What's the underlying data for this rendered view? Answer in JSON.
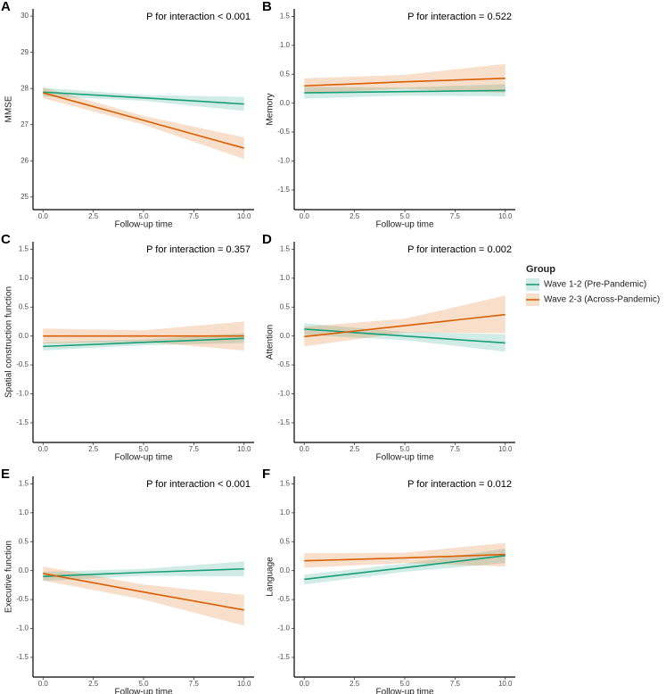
{
  "chart_data": [
    {
      "type": "line",
      "label": "A",
      "annotation": "P for interaction < 0.001",
      "x_label": "Follow-up time",
      "y_label": "MMSE",
      "legend_title": "Group",
      "x": [
        0,
        5,
        10
      ],
      "xlim": [
        -0.5,
        10.5
      ],
      "xticks": [
        {
          "value": 0,
          "label": "0.0"
        },
        2.5,
        {
          "value": 5,
          "label": "5.0"
        },
        7.5,
        {
          "value": 10,
          "label": "10.0"
        }
      ],
      "ylim": [
        24.65,
        30.2
      ],
      "yticks": [
        25,
        26,
        27,
        28,
        29,
        30
      ],
      "series": [
        {
          "name": "Wave 1-2 (Pre-Pandemic)",
          "color": "#1b9e77",
          "values": [
            27.9,
            27.74,
            27.57
          ],
          "lower": [
            27.78,
            27.66,
            27.38
          ],
          "upper": [
            28.02,
            27.82,
            27.77
          ]
        },
        {
          "name": "Wave 2-3 (Across-Pandemic)",
          "color": "#d95f02",
          "values": [
            27.88,
            27.12,
            26.35
          ],
          "lower": [
            27.73,
            27.0,
            26.05
          ],
          "upper": [
            28.03,
            27.24,
            26.65
          ]
        }
      ]
    },
    {
      "type": "line",
      "label": "B",
      "annotation": "P for interaction = 0.522",
      "x_label": "Follow-up time",
      "y_label": "Memory",
      "x": [
        0,
        5,
        10
      ],
      "xlim": [
        -0.5,
        10.5
      ],
      "xticks": [
        {
          "value": 0,
          "label": "0.0"
        },
        2.5,
        {
          "value": 5,
          "label": "5.0"
        },
        7.5,
        {
          "value": 10,
          "label": "10.0"
        }
      ],
      "ylim": [
        -1.84,
        1.63
      ],
      "yticks": [
        -1.5,
        {
          "value": -1,
          "label": "-1.0"
        },
        -0.5,
        {
          "value": 0,
          "label": "0.0"
        },
        0.5,
        {
          "value": 1,
          "label": "1.0"
        },
        1.5
      ],
      "series": [
        {
          "name": "Wave 1-2 (Pre-Pandemic)",
          "color": "#1b9e77",
          "values": [
            0.18,
            0.2,
            0.22
          ],
          "lower": [
            0.08,
            0.13,
            0.12
          ],
          "upper": [
            0.28,
            0.27,
            0.33
          ]
        },
        {
          "name": "Wave 2-3 (Across-Pandemic)",
          "color": "#d95f02",
          "values": [
            0.3,
            0.37,
            0.43
          ],
          "lower": [
            0.17,
            0.25,
            0.18
          ],
          "upper": [
            0.43,
            0.49,
            0.68
          ]
        }
      ]
    },
    {
      "type": "line",
      "label": "C",
      "annotation": "P for interaction = 0.357",
      "x_label": "Follow-up time",
      "y_label": "Spatial construction function",
      "x": [
        0,
        5,
        10
      ],
      "xlim": [
        -0.5,
        10.5
      ],
      "xticks": [
        {
          "value": 0,
          "label": "0.0"
        },
        2.5,
        {
          "value": 5,
          "label": "5.0"
        },
        7.5,
        {
          "value": 10,
          "label": "10.0"
        }
      ],
      "ylim": [
        -1.84,
        1.63
      ],
      "yticks": [
        -1.5,
        {
          "value": -1,
          "label": "-1.0"
        },
        -0.5,
        {
          "value": 0,
          "label": "0.0"
        },
        0.5,
        {
          "value": 1,
          "label": "1.0"
        },
        1.5
      ],
      "series": [
        {
          "name": "Wave 1-2 (Pre-Pandemic)",
          "color": "#1b9e77",
          "values": [
            -0.18,
            -0.11,
            -0.04
          ],
          "lower": [
            -0.25,
            -0.16,
            -0.12
          ],
          "upper": [
            -0.11,
            -0.06,
            0.05
          ]
        },
        {
          "name": "Wave 2-3 (Across-Pandemic)",
          "color": "#d95f02",
          "values": [
            0.0,
            0.0,
            0.0
          ],
          "lower": [
            -0.13,
            -0.1,
            -0.25
          ],
          "upper": [
            0.13,
            0.1,
            0.25
          ]
        }
      ]
    },
    {
      "type": "line",
      "label": "D",
      "annotation": "P for interaction = 0.002",
      "x_label": "Follow-up time",
      "y_label": "Attention",
      "x": [
        0,
        5,
        10
      ],
      "xlim": [
        -0.5,
        10.5
      ],
      "xticks": [
        {
          "value": 0,
          "label": "0.0"
        },
        2.5,
        {
          "value": 5,
          "label": "5.0"
        },
        7.5,
        {
          "value": 10,
          "label": "10.0"
        }
      ],
      "ylim": [
        -1.84,
        1.63
      ],
      "yticks": [
        -1.5,
        {
          "value": -1,
          "label": "-1.0"
        },
        -0.5,
        {
          "value": 0,
          "label": "0.0"
        },
        0.5,
        {
          "value": 1,
          "label": "1.0"
        },
        1.5
      ],
      "series": [
        {
          "name": "Wave 1-2 (Pre-Pandemic)",
          "color": "#1b9e77",
          "values": [
            0.12,
            0.0,
            -0.12
          ],
          "lower": [
            0.02,
            -0.07,
            -0.27
          ],
          "upper": [
            0.22,
            0.07,
            0.03
          ]
        },
        {
          "name": "Wave 2-3 (Across-Pandemic)",
          "color": "#d95f02",
          "values": [
            -0.01,
            0.18,
            0.37
          ],
          "lower": [
            -0.18,
            0.06,
            0.05
          ],
          "upper": [
            0.16,
            0.3,
            0.7
          ]
        }
      ]
    },
    {
      "type": "line",
      "label": "E",
      "annotation": "P for interaction < 0.001",
      "x_label": "Follow-up time",
      "y_label": "Executive function",
      "x": [
        0,
        5,
        10
      ],
      "xlim": [
        -0.5,
        10.5
      ],
      "xticks": [
        {
          "value": 0,
          "label": "0.0"
        },
        2.5,
        {
          "value": 5,
          "label": "5.0"
        },
        7.5,
        {
          "value": 10,
          "label": "10.0"
        }
      ],
      "ylim": [
        -1.84,
        1.63
      ],
      "yticks": [
        -1.5,
        {
          "value": -1,
          "label": "-1.0"
        },
        -0.5,
        {
          "value": 0,
          "label": "0.0"
        },
        0.5,
        {
          "value": 1,
          "label": "1.0"
        },
        1.5
      ],
      "series": [
        {
          "name": "Wave 1-2 (Pre-Pandemic)",
          "color": "#1b9e77",
          "values": [
            -0.1,
            -0.03,
            0.03
          ],
          "lower": [
            -0.18,
            -0.09,
            -0.1
          ],
          "upper": [
            -0.02,
            0.03,
            0.16
          ]
        },
        {
          "name": "Wave 2-3 (Across-Pandemic)",
          "color": "#d95f02",
          "values": [
            -0.05,
            -0.37,
            -0.68
          ],
          "lower": [
            -0.17,
            -0.5,
            -0.95
          ],
          "upper": [
            0.07,
            -0.24,
            -0.42
          ]
        }
      ]
    },
    {
      "type": "line",
      "label": "F",
      "annotation": "P for interaction = 0.012",
      "x_label": "Follow-up time",
      "y_label": "Language",
      "x": [
        0,
        5,
        10
      ],
      "xlim": [
        -0.5,
        10.5
      ],
      "xticks": [
        {
          "value": 0,
          "label": "0.0"
        },
        2.5,
        {
          "value": 5,
          "label": "5.0"
        },
        7.5,
        {
          "value": 10,
          "label": "10.0"
        }
      ],
      "ylim": [
        -1.84,
        1.63
      ],
      "yticks": [
        -1.5,
        {
          "value": -1,
          "label": "-1.0"
        },
        -0.5,
        {
          "value": 0,
          "label": "0.0"
        },
        0.5,
        {
          "value": 1,
          "label": "1.0"
        },
        1.5
      ],
      "series": [
        {
          "name": "Wave 1-2 (Pre-Pandemic)",
          "color": "#1b9e77",
          "values": [
            -0.15,
            0.05,
            0.26
          ],
          "lower": [
            -0.24,
            -0.02,
            0.13
          ],
          "upper": [
            -0.07,
            0.12,
            0.38
          ]
        },
        {
          "name": "Wave 2-3 (Across-Pandemic)",
          "color": "#d95f02",
          "values": [
            0.17,
            0.22,
            0.28
          ],
          "lower": [
            0.05,
            0.13,
            0.07
          ],
          "upper": [
            0.3,
            0.31,
            0.48
          ]
        }
      ]
    }
  ]
}
